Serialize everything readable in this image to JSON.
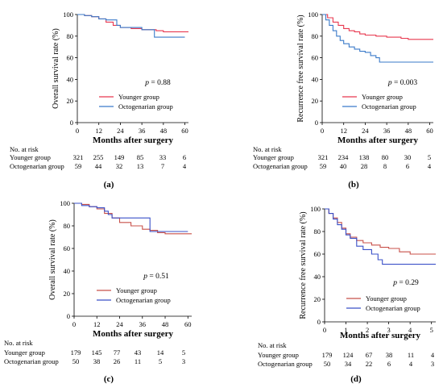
{
  "figure": {
    "risk_header": "No. at risk",
    "panels": [
      "(a)",
      "(b)",
      "(c)",
      "(d)"
    ]
  },
  "chart_data": [
    {
      "type": "line",
      "panel_label": "(a)",
      "xlabel": "Months after surgery",
      "ylabel": "Overall survival rate (%)",
      "xlim": [
        0,
        62
      ],
      "ylim": [
        0,
        100
      ],
      "xticks": [
        "0",
        "12",
        "24",
        "36",
        "48",
        "60"
      ],
      "yticks": [
        "0",
        "20",
        "40",
        "60",
        "80",
        "100"
      ],
      "x_tick_values": [
        0,
        12,
        24,
        36,
        48,
        60
      ],
      "y_tick_values": [
        0,
        20,
        40,
        60,
        80,
        100
      ],
      "p_text": "p = 0.88",
      "legend_position": "bottom-right",
      "series": [
        {
          "name": "Younger group",
          "color": "#e8384f",
          "x": [
            0,
            4,
            8,
            12,
            16,
            20,
            24,
            30,
            36,
            40,
            44,
            48,
            52,
            56,
            62
          ],
          "y": [
            100,
            99,
            98,
            96,
            93,
            90,
            88,
            87,
            86,
            86,
            85,
            84,
            84,
            84,
            84
          ]
        },
        {
          "name": "Octogenarian group",
          "color": "#3a7ac9",
          "x": [
            0,
            4,
            8,
            12,
            16,
            20,
            22,
            24,
            30,
            36,
            40,
            43,
            43,
            48,
            52,
            56,
            60
          ],
          "y": [
            100,
            99,
            98,
            96,
            95,
            95,
            90,
            88,
            88,
            86,
            86,
            86,
            79,
            79,
            79,
            79,
            79
          ]
        }
      ],
      "risk_rows": [
        {
          "label": "Younger group",
          "values": [
            "321",
            "255",
            "149",
            "85",
            "33",
            "6"
          ]
        },
        {
          "label": "Octogenarian group",
          "values": [
            "59",
            "44",
            "32",
            "13",
            "7",
            "4"
          ]
        }
      ]
    },
    {
      "type": "line",
      "panel_label": "(b)",
      "xlabel": "Months after surgery",
      "ylabel": "Recurrence free survival rate (%)",
      "xlim": [
        0,
        62
      ],
      "ylim": [
        0,
        100
      ],
      "xticks": [
        "0",
        "12",
        "24",
        "36",
        "48",
        "60"
      ],
      "yticks": [
        "0",
        "20",
        "40",
        "60",
        "80",
        "100"
      ],
      "x_tick_values": [
        0,
        12,
        24,
        36,
        48,
        60
      ],
      "y_tick_values": [
        0,
        20,
        40,
        60,
        80,
        100
      ],
      "p_text": "p = 0.003",
      "legend_position": "bottom-right",
      "series": [
        {
          "name": "Younger group",
          "color": "#e8384f",
          "x": [
            0,
            3,
            6,
            9,
            12,
            15,
            18,
            21,
            24,
            30,
            36,
            40,
            44,
            48,
            52,
            56,
            62
          ],
          "y": [
            100,
            97,
            93,
            90,
            87,
            85,
            84,
            82,
            81,
            80,
            79,
            79,
            78,
            77,
            77,
            77,
            77
          ]
        },
        {
          "name": "Octogenarian group",
          "color": "#3a7ac9",
          "x": [
            0,
            2,
            4,
            6,
            8,
            10,
            12,
            15,
            18,
            21,
            24,
            27,
            30,
            32,
            36,
            40,
            48,
            56,
            62
          ],
          "y": [
            100,
            95,
            90,
            85,
            80,
            76,
            73,
            70,
            68,
            66,
            65,
            62,
            60,
            56,
            56,
            56,
            56,
            56,
            56
          ]
        }
      ],
      "risk_rows": [
        {
          "label": "Younger group",
          "values": [
            "321",
            "234",
            "138",
            "80",
            "30",
            "5"
          ]
        },
        {
          "label": "Octogenarian group",
          "values": [
            "59",
            "40",
            "28",
            "8",
            "6",
            "4"
          ]
        }
      ]
    },
    {
      "type": "line",
      "panel_label": "(c)",
      "xlabel": "Months after surgery",
      "ylabel": "Overall survival rate (%)",
      "xlim": [
        0,
        62
      ],
      "ylim": [
        0,
        100
      ],
      "xticks": [
        "0",
        "12",
        "24",
        "36",
        "48",
        "60"
      ],
      "yticks": [
        "0",
        "20",
        "40",
        "60",
        "80",
        "100"
      ],
      "x_tick_values": [
        0,
        12,
        24,
        36,
        48,
        60
      ],
      "y_tick_values": [
        0,
        20,
        40,
        60,
        80,
        100
      ],
      "p_text": "p = 0.51",
      "legend_position": "bottom-right",
      "series": [
        {
          "name": "Younger group",
          "color": "#c8504a",
          "x": [
            0,
            4,
            8,
            12,
            16,
            20,
            24,
            30,
            36,
            40,
            44,
            48,
            52,
            56,
            62
          ],
          "y": [
            100,
            99,
            97,
            95,
            91,
            87,
            83,
            80,
            77,
            76,
            74,
            73,
            73,
            73,
            73
          ]
        },
        {
          "name": "Octogenarian group",
          "color": "#3a50c8",
          "x": [
            0,
            4,
            8,
            12,
            16,
            18,
            20,
            24,
            36,
            40,
            40,
            48,
            56,
            60
          ],
          "y": [
            100,
            98,
            97,
            96,
            93,
            90,
            87,
            87,
            87,
            87,
            75,
            75,
            75,
            75
          ]
        }
      ],
      "risk_rows": [
        {
          "label": "Younger group",
          "values": [
            "179",
            "145",
            "77",
            "43",
            "14",
            "5"
          ]
        },
        {
          "label": "Octogenarian group",
          "values": [
            "50",
            "38",
            "26",
            "11",
            "5",
            "3"
          ]
        }
      ]
    },
    {
      "type": "line",
      "panel_label": "(d)",
      "xlabel": "Months after surgery",
      "ylabel": "Recurrence free survival rate (%)",
      "xlim": [
        0,
        5.2
      ],
      "ylim": [
        0,
        100
      ],
      "xticks": [
        "0",
        "1",
        "2",
        "3",
        "4",
        "5"
      ],
      "yticks": [
        "0",
        "20",
        "40",
        "60",
        "80",
        "100"
      ],
      "x_tick_values": [
        0,
        1,
        2,
        3,
        4,
        5
      ],
      "y_tick_values": [
        0,
        20,
        40,
        60,
        80,
        100
      ],
      "p_text": "p = 0.29",
      "legend_position": "bottom-right",
      "series": [
        {
          "name": "Younger group",
          "color": "#c8504a",
          "x": [
            0,
            0.2,
            0.4,
            0.6,
            0.8,
            1.0,
            1.2,
            1.5,
            1.8,
            2.2,
            2.6,
            3.0,
            3.5,
            4.0,
            4.5,
            5.2
          ],
          "y": [
            100,
            96,
            92,
            88,
            83,
            78,
            75,
            72,
            70,
            68,
            66,
            65,
            62,
            60,
            60,
            60
          ]
        },
        {
          "name": "Octogenarian group",
          "color": "#3a50c8",
          "x": [
            0,
            0.2,
            0.4,
            0.6,
            0.8,
            1.0,
            1.2,
            1.5,
            1.8,
            2.2,
            2.5,
            2.7,
            3.0,
            3.5,
            4.0,
            4.5,
            5.2
          ],
          "y": [
            100,
            96,
            91,
            86,
            82,
            77,
            74,
            67,
            64,
            60,
            55,
            51,
            51,
            51,
            51,
            51,
            51
          ]
        }
      ],
      "risk_rows": [
        {
          "label": "Younger group",
          "values": [
            "179",
            "124",
            "67",
            "38",
            "11",
            "4"
          ]
        },
        {
          "label": "Octogenarian group",
          "values": [
            "50",
            "34",
            "22",
            "6",
            "4",
            "3"
          ]
        }
      ]
    }
  ]
}
